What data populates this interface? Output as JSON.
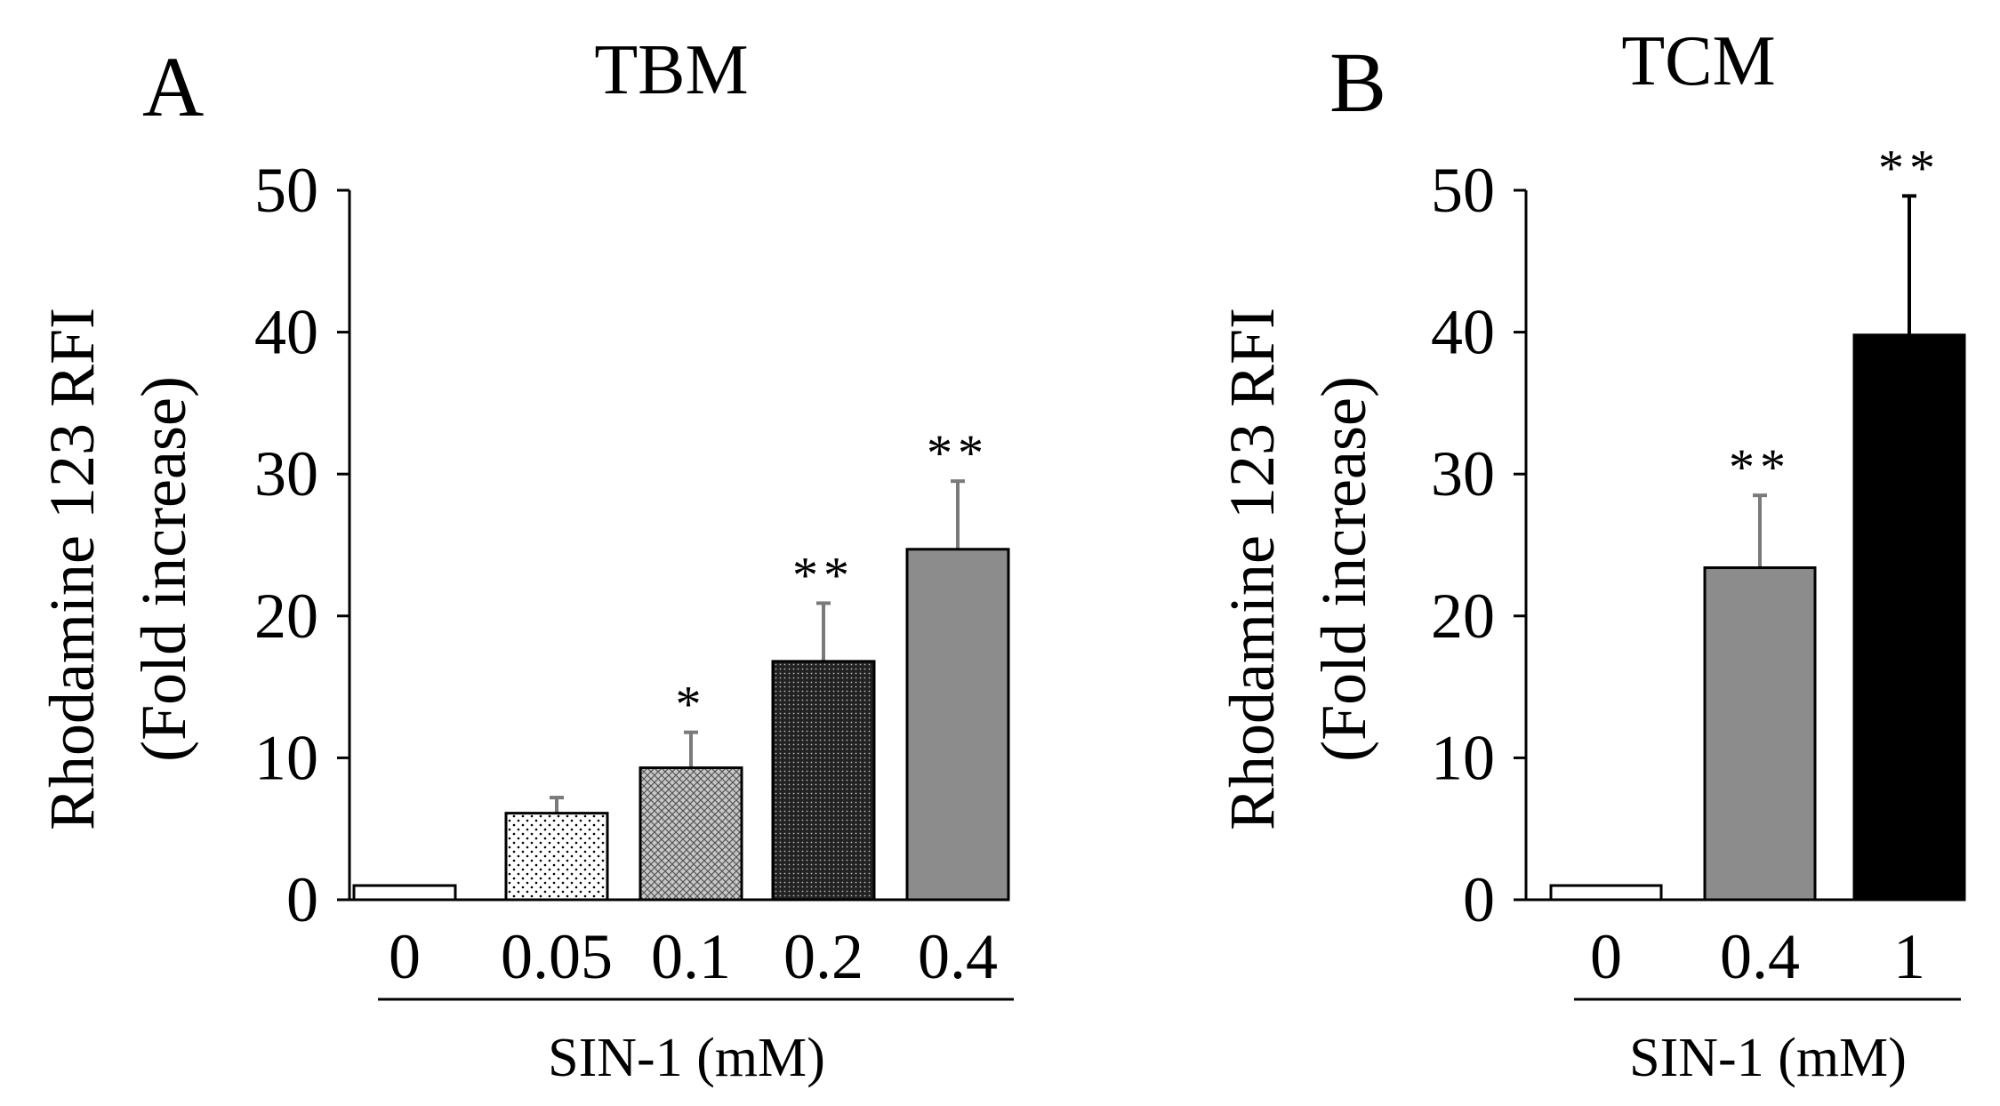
{
  "figure": {
    "panels": [
      "A",
      "B"
    ]
  },
  "chart_data": [
    {
      "type": "bar",
      "panel": "A",
      "title": "TBM",
      "ylabel": [
        "Rhodamine 123  RFI",
        "(Fold increase)"
      ],
      "xlabel": "SIN-1 (mM)",
      "ylim": [
        0,
        50
      ],
      "yticks": [
        0,
        10,
        20,
        30,
        40,
        50
      ],
      "categories": [
        "0",
        "0.05",
        "0.1",
        "0.2",
        "0.4"
      ],
      "values": [
        1,
        6.1,
        9.3,
        16.8,
        24.7
      ],
      "errors": [
        0,
        1.1,
        2.5,
        4.1,
        4.8
      ],
      "significance": [
        "",
        "",
        "*",
        "**",
        "**"
      ],
      "fills": [
        "white",
        "sparse-dots",
        "crosshatch",
        "dense-dots",
        "#8c8c8c"
      ]
    },
    {
      "type": "bar",
      "panel": "B",
      "title": "TCM",
      "ylabel": [
        "Rhodamine 123 RFI",
        "(Fold increase)"
      ],
      "xlabel": "SIN-1 (mM)",
      "ylim": [
        0,
        50
      ],
      "yticks": [
        0,
        10,
        20,
        30,
        40,
        50
      ],
      "categories": [
        "0",
        "0.4",
        "1"
      ],
      "values": [
        1,
        23.4,
        39.8
      ],
      "errors": [
        0,
        5.1,
        9.8
      ],
      "significance": [
        "",
        "**",
        "**"
      ],
      "fills": [
        "white",
        "#8c8c8c",
        "#000000"
      ]
    }
  ]
}
